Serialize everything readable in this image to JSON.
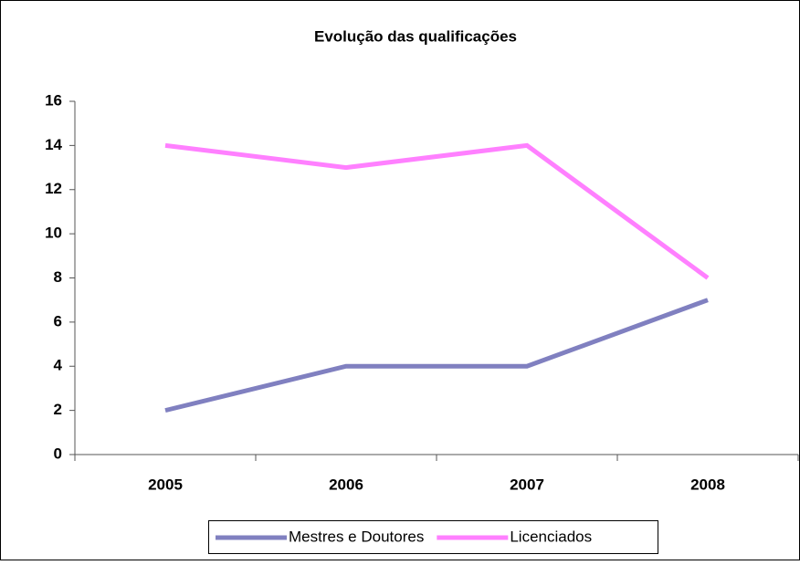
{
  "chart_data": {
    "type": "line",
    "title": "Evolução das qualificações",
    "categories": [
      "2005",
      "2006",
      "2007",
      "2008"
    ],
    "series": [
      {
        "name": "Mestres e Doutores",
        "color": "#8080c0",
        "values": [
          2,
          4,
          4,
          7
        ]
      },
      {
        "name": "Licenciados",
        "color": "#ff80ff",
        "values": [
          14,
          13,
          14,
          8
        ]
      }
    ],
    "ylim": [
      0,
      16
    ],
    "yticks": [
      0,
      2,
      4,
      6,
      8,
      10,
      12,
      14,
      16
    ],
    "grid": false,
    "legend": "bottom"
  }
}
